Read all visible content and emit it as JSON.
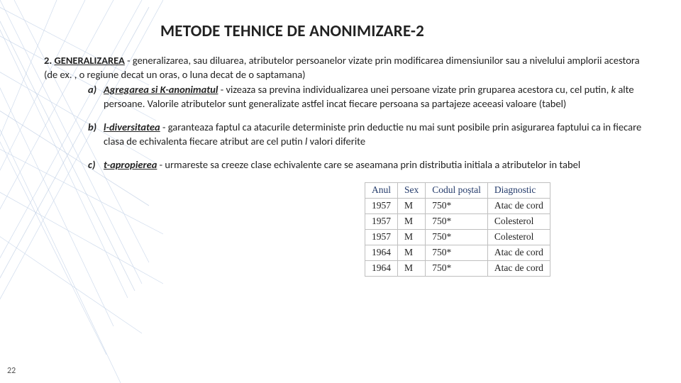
{
  "title": "METODE TEHNICE DE ANONIMIZARE-2",
  "intro": {
    "num": "2.",
    "term": "GENERALIZAREA",
    "rest": " - generalizarea, sau diluarea, atributelor persoanelor vizate prin modificarea dimensiunilor sau a nivelului amplorii acestora (de ex. , o regiune decat un oras, o luna decat de o saptamana)"
  },
  "items": [
    {
      "marker": "a)",
      "lead": "Agregarea si K-anonimatul",
      "rest": " - vizeaza sa previna individualizarea unei persoane vizate prin gruparea acestora cu, cel putin, ",
      "ital": "k",
      "rest2": " alte persoane. Valorile atributelor sunt generalizate astfel incat fiecare persoana sa partajeze aceeasi valoare (tabel)"
    },
    {
      "marker": "b)",
      "lead": "l-diversitatea",
      "rest": "  - garanteaza faptul ca atacurile deterministe prin deductie nu mai sunt posibile prin asigurarea faptului ca in fiecare clasa de echivalenta fiecare atribut are cel putin ",
      "ital": "l",
      "rest2": " valori diferite"
    },
    {
      "marker": "c)",
      "lead": "t-apropierea",
      "rest": " - urmareste sa creeze clase echivalente care se aseamana prin distributia initiala a atributelor in tabel",
      "ital": "",
      "rest2": ""
    }
  ],
  "table": {
    "columns": [
      "Anul",
      "Sex",
      "Codul poștal",
      "Diagnostic"
    ],
    "rows": [
      [
        "1957",
        "M",
        "750*",
        "Atac de cord"
      ],
      [
        "1957",
        "M",
        "750*",
        "Colesterol"
      ],
      [
        "1957",
        "M",
        "750*",
        "Colesterol"
      ],
      [
        "1964",
        "M",
        "750*",
        "Atac de cord"
      ],
      [
        "1964",
        "M",
        "750*",
        "Atac de cord"
      ]
    ],
    "header_color": "#233a6a",
    "border_color": "#bfbfbf",
    "font": "Times New Roman",
    "fontsize": 13.5
  },
  "slide_number": "22",
  "bg": {
    "stroke": "#9fb7d9",
    "stroke2": "#6e8fbf"
  }
}
